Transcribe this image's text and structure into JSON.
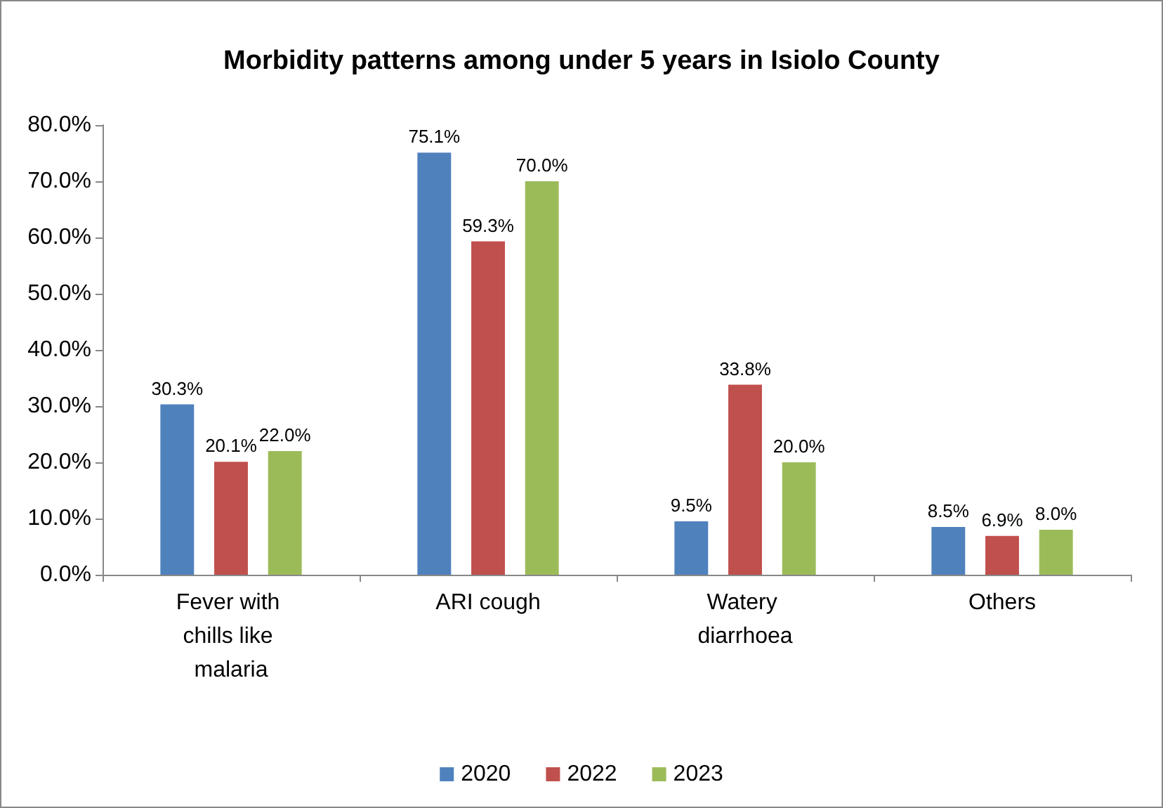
{
  "chart_data": {
    "type": "bar",
    "title": "Morbidity patterns among under 5 years in Isiolo County",
    "categories": [
      "Fever with chills like malaria",
      "ARI cough",
      "Watery diarrhoea",
      "Others"
    ],
    "series": [
      {
        "name": "2020",
        "color": "#4f81bd",
        "values": [
          30.3,
          75.1,
          9.5,
          8.5
        ],
        "value_labels": [
          "30.3%",
          "75.1%",
          "9.5%",
          "8.5%"
        ]
      },
      {
        "name": "2022",
        "color": "#c0504d",
        "values": [
          20.1,
          59.3,
          33.8,
          6.9
        ],
        "value_labels": [
          "20.1%",
          "59.3%",
          "33.8%",
          "6.9%"
        ]
      },
      {
        "name": "2023",
        "color": "#9bbb59",
        "values": [
          22.0,
          70.0,
          20.0,
          8.0
        ],
        "value_labels": [
          "22.0%",
          "70.0%",
          "20.0%",
          "8.0%"
        ]
      }
    ],
    "ylim": [
      0,
      80
    ],
    "yticks": [
      {
        "value": 0,
        "label": "0.0%"
      },
      {
        "value": 10,
        "label": "10.0%"
      },
      {
        "value": 20,
        "label": "20.0%"
      },
      {
        "value": 30,
        "label": "30.0%"
      },
      {
        "value": 40,
        "label": "40.0%"
      },
      {
        "value": 50,
        "label": "50.0%"
      },
      {
        "value": 60,
        "label": "60.0%"
      },
      {
        "value": 70,
        "label": "70.0%"
      },
      {
        "value": 80,
        "label": "80.0%"
      }
    ],
    "grid": false,
    "legend": "bottom"
  }
}
